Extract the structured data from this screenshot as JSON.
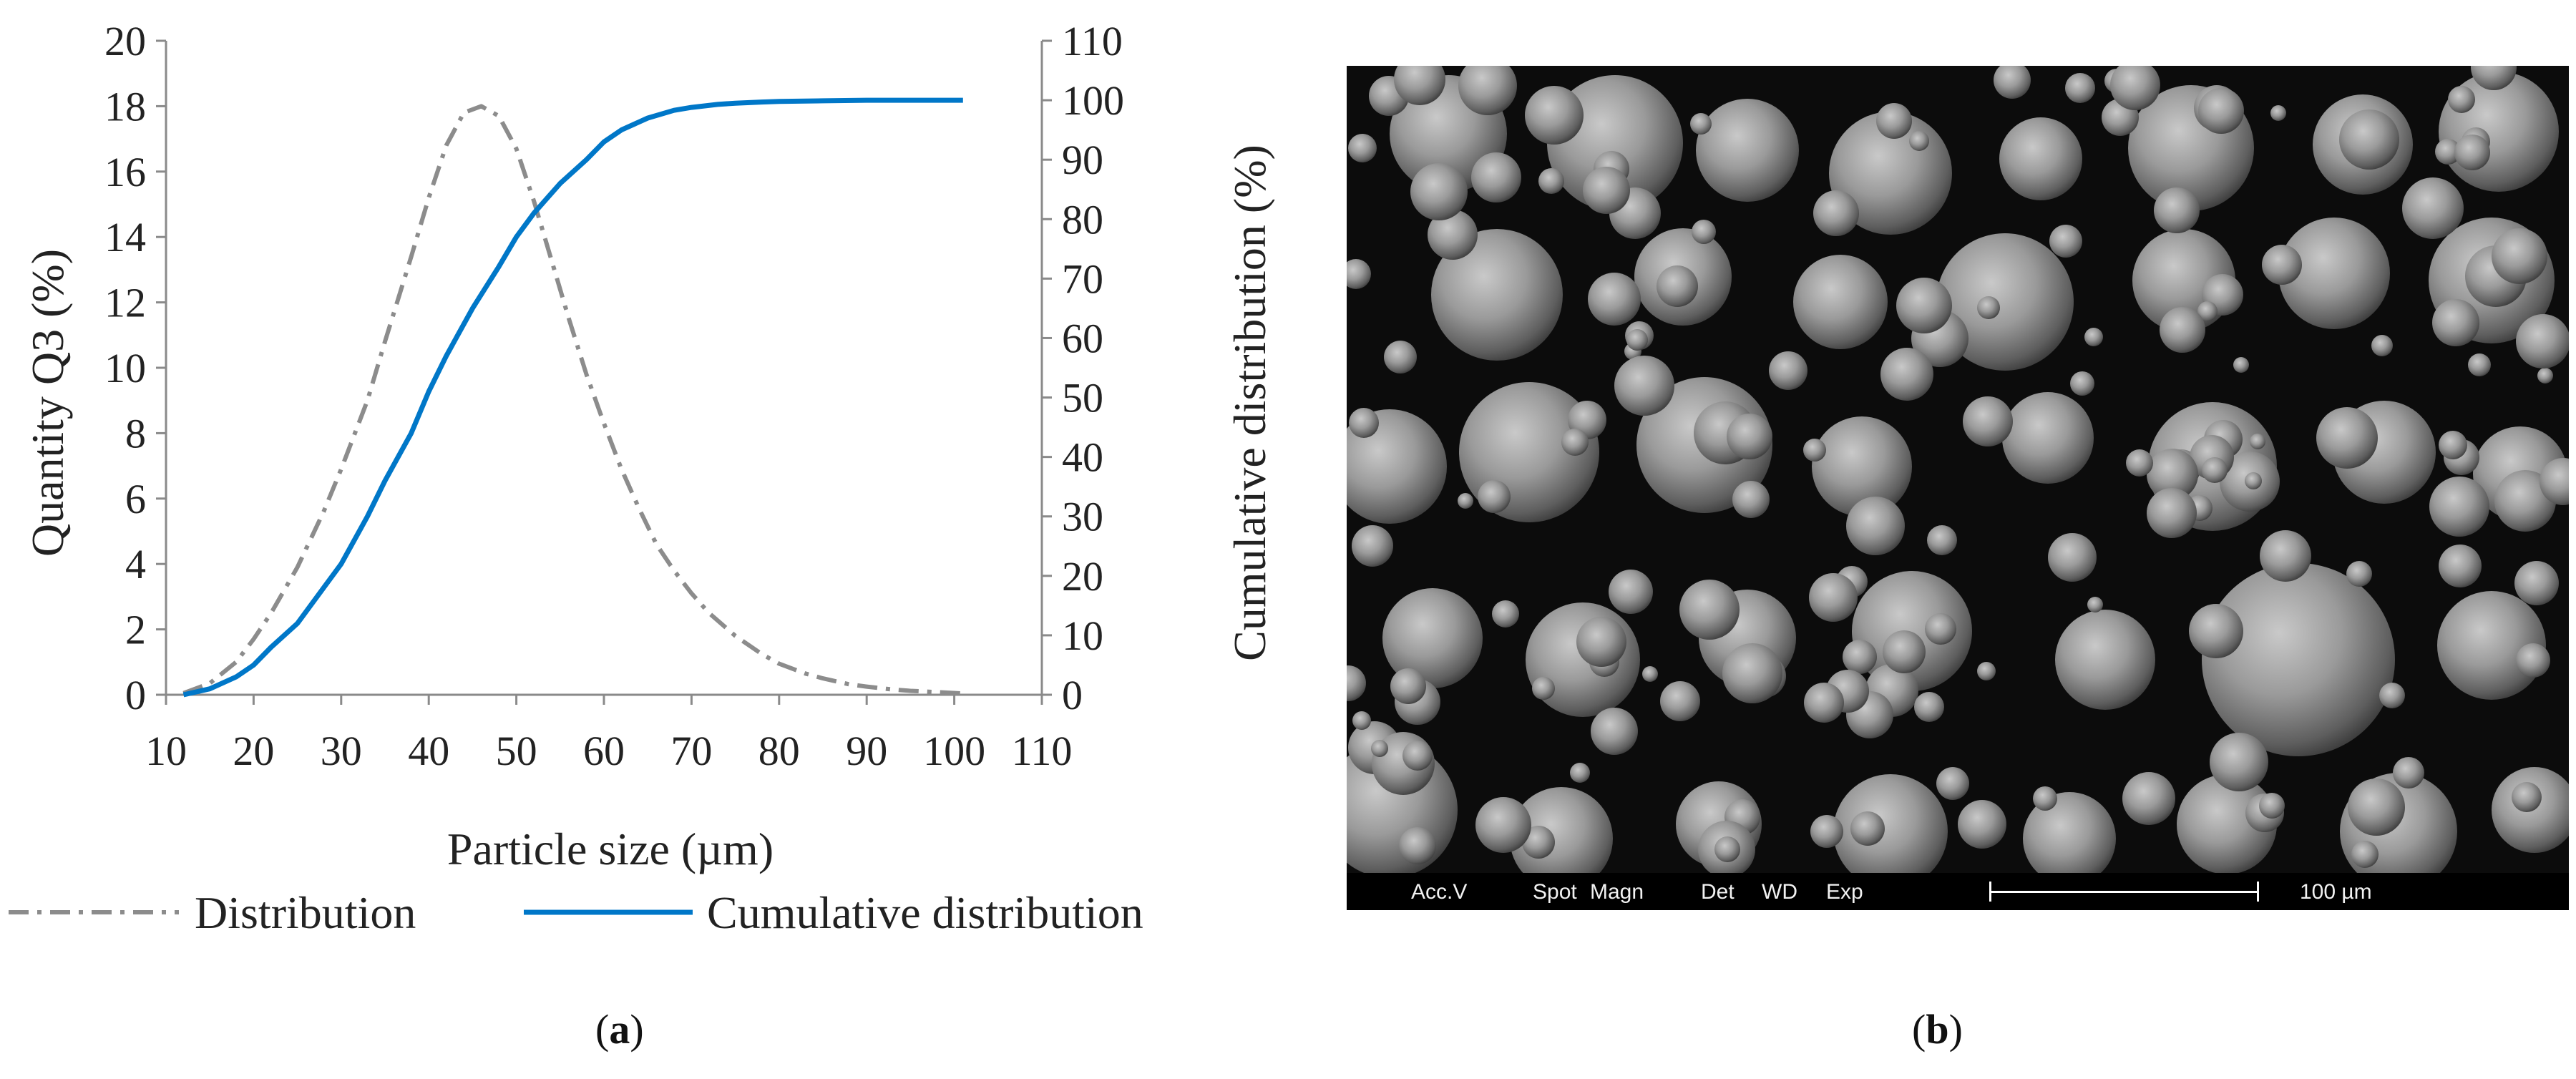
{
  "chart_data": {
    "type": "line",
    "xlabel": "Particle size  (µm)",
    "ylabel_left": "Quantity Q3 (%)",
    "ylabel_right": "Cumulative distribution (%)",
    "xlim": [
      10,
      110
    ],
    "ylim_left": [
      0,
      20
    ],
    "ylim_right": [
      0,
      110
    ],
    "x_ticks": [
      "10",
      "20",
      "30",
      "40",
      "50",
      "60",
      "70",
      "80",
      "90",
      "100",
      "110"
    ],
    "y_ticks_left": [
      "0",
      "2",
      "4",
      "6",
      "8",
      "10",
      "12",
      "14",
      "16",
      "18",
      "20"
    ],
    "y_ticks_right": [
      "0",
      "10",
      "20",
      "30",
      "40",
      "50",
      "60",
      "70",
      "80",
      "90",
      "100",
      "110"
    ],
    "grid": false,
    "legend_position": "bottom",
    "series": [
      {
        "name": "Distribution",
        "axis": "left",
        "style": "dash-dot",
        "color": "#8c8c8c",
        "x": [
          12,
          15,
          18,
          20,
          22,
          25,
          28,
          30,
          33,
          35,
          38,
          40,
          42,
          44,
          46,
          48,
          50,
          52,
          54,
          56,
          58,
          60,
          62,
          64,
          66,
          68,
          70,
          72,
          75,
          78,
          80,
          83,
          85,
          88,
          90,
          93,
          95,
          98,
          101
        ],
        "y": [
          0.05,
          0.35,
          1.0,
          1.7,
          2.5,
          3.9,
          5.6,
          6.9,
          9.0,
          10.8,
          13.4,
          15.2,
          16.8,
          17.8,
          18.0,
          17.7,
          16.7,
          15.1,
          13.3,
          11.5,
          9.8,
          8.3,
          6.9,
          5.7,
          4.6,
          3.8,
          3.1,
          2.5,
          1.8,
          1.25,
          0.95,
          0.65,
          0.5,
          0.32,
          0.25,
          0.16,
          0.12,
          0.08,
          0.04
        ]
      },
      {
        "name": "Cumulative distribution",
        "axis": "right",
        "style": "solid",
        "color": "#0077c8",
        "x": [
          12,
          15,
          18,
          20,
          22,
          25,
          28,
          30,
          33,
          35,
          38,
          40,
          42,
          45,
          48,
          50,
          52,
          55,
          58,
          60,
          62,
          65,
          68,
          70,
          73,
          75,
          78,
          80,
          85,
          90,
          95,
          101
        ],
        "y": [
          0,
          1,
          3,
          5,
          8,
          12,
          18,
          22,
          30,
          36,
          44,
          51,
          57,
          65,
          72,
          77,
          81,
          86,
          90,
          93,
          95,
          97,
          98.3,
          98.8,
          99.3,
          99.5,
          99.7,
          99.8,
          99.9,
          100,
          100,
          100
        ]
      }
    ]
  },
  "sem_image": {
    "databar": {
      "acc_v": "Acc.V",
      "spot": "Spot",
      "magn": "Magn",
      "det": "Det",
      "wd": "WD",
      "exp": "Exp",
      "scale_label": "100 µm"
    }
  },
  "captions": {
    "a": "a",
    "b": "b"
  }
}
